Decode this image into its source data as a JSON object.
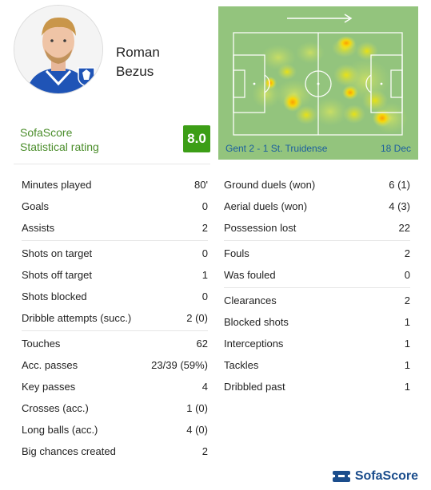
{
  "player": {
    "first_name": "Roman",
    "last_name": "Bezus",
    "club_badge_text": "KAA GENT"
  },
  "rating": {
    "label_line1": "SofaScore",
    "label_line2": "Statistical rating",
    "value": "8.0",
    "color": "#3c9e16"
  },
  "match": {
    "label": "Gent 2 - 1 St. Truidense",
    "date": "18 Dec"
  },
  "stats_left": [
    {
      "label": "Minutes played",
      "value": "80'"
    },
    {
      "label": "Goals",
      "value": "0"
    },
    {
      "label": "Assists",
      "value": "2"
    },
    {
      "label": "Shots on target",
      "value": "0"
    },
    {
      "label": "Shots off target",
      "value": "1"
    },
    {
      "label": "Shots blocked",
      "value": "0"
    },
    {
      "label": "Dribble attempts (succ.)",
      "value": "2 (0)"
    },
    {
      "label": "Touches",
      "value": "62"
    },
    {
      "label": "Acc. passes",
      "value": "23/39 (59%)"
    },
    {
      "label": "Key passes",
      "value": "4"
    },
    {
      "label": "Crosses (acc.)",
      "value": "1 (0)"
    },
    {
      "label": "Long balls (acc.)",
      "value": "4 (0)"
    },
    {
      "label": "Big chances created",
      "value": "2"
    }
  ],
  "stats_right": [
    {
      "label": "Ground duels (won)",
      "value": "6 (1)"
    },
    {
      "label": "Aerial duels (won)",
      "value": "4 (3)"
    },
    {
      "label": "Possession lost",
      "value": "22"
    },
    {
      "label": "Fouls",
      "value": "2"
    },
    {
      "label": "Was fouled",
      "value": "0"
    },
    {
      "label": "Clearances",
      "value": "2"
    },
    {
      "label": "Blocked shots",
      "value": "1"
    },
    {
      "label": "Interceptions",
      "value": "1"
    },
    {
      "label": "Tackles",
      "value": "1"
    },
    {
      "label": "Dribbled past",
      "value": "1"
    }
  ],
  "brand": {
    "name": "SofaScore",
    "color": "#1b4d8c"
  },
  "icons": {
    "attack_direction": "arrow-right-icon",
    "brand_logo": "sofascore-logo-icon"
  }
}
